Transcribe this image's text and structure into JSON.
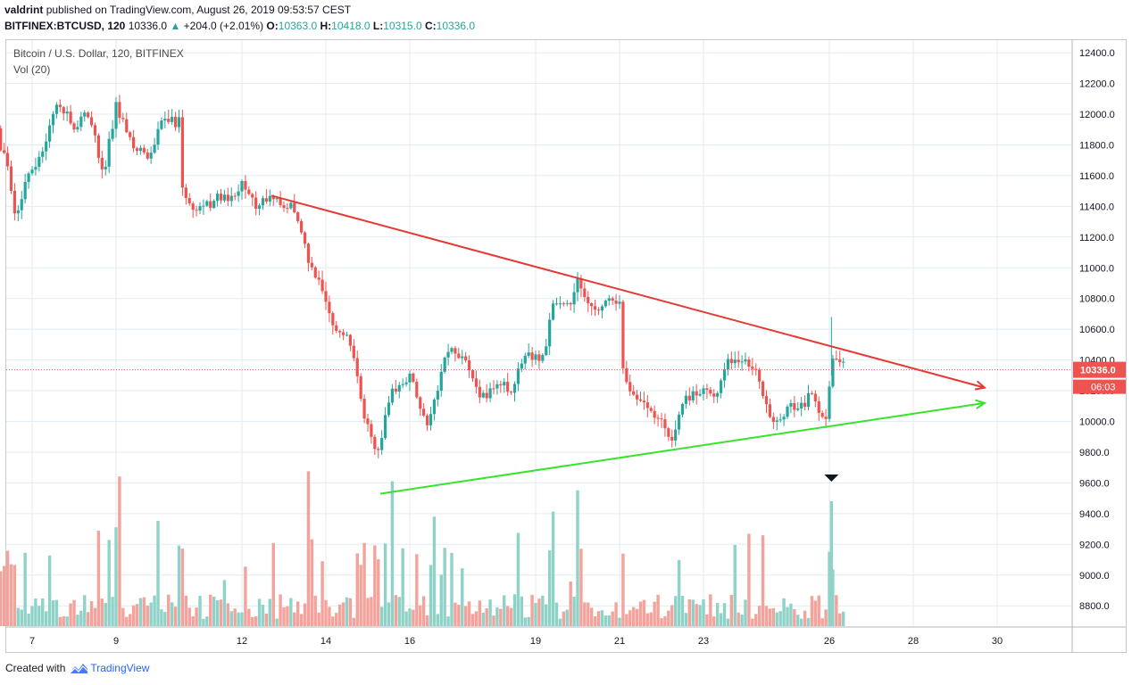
{
  "header": {
    "author": "valdrint",
    "published": "published on TradingView.com, August 26, 2019 09:53:57 CEST",
    "symbol": "BITFINEX:BTCUSD, 120",
    "last": "10336.0",
    "change": "+204.0 (+2.01%)",
    "open_label": "O:",
    "open": "10363.0",
    "high_label": "H:",
    "high": "10418.0",
    "low_label": "L:",
    "low": "10315.0",
    "close_label": "C:",
    "close": "10336.0"
  },
  "legend": {
    "title": "Bitcoin / U.S. Dollar, 120, BITFINEX",
    "volume": "Vol (20)"
  },
  "price_axis": {
    "ticks": [
      8800,
      9000,
      9200,
      9400,
      9600,
      9800,
      10000,
      10200,
      10400,
      10600,
      10800,
      11000,
      11200,
      11400,
      11600,
      11800,
      12000,
      12200,
      12400
    ],
    "current_price": "10336.0",
    "countdown": "06:03"
  },
  "time_axis": {
    "ticks": [
      "7",
      "9",
      "12",
      "14",
      "16",
      "19",
      "21",
      "23",
      "26",
      "28",
      "30"
    ]
  },
  "colors": {
    "up": "#26a69a",
    "down": "#ef5350",
    "up_volume": "#8fd2c8",
    "down_volume": "#f3a39b",
    "resistance": "#e53935",
    "support": "#39e32b"
  },
  "chart_data": {
    "type": "candlestick",
    "symbol": "BTCUSD",
    "interval": "120",
    "x_unit": "day of August 2019",
    "y_range": [
      8700,
      12500
    ],
    "anchors": [
      {
        "day": 6.0,
        "price": 12280
      },
      {
        "day": 6.2,
        "price": 11820
      },
      {
        "day": 6.4,
        "price": 11720
      },
      {
        "day": 6.6,
        "price": 11350
      },
      {
        "day": 6.9,
        "price": 11600
      },
      {
        "day": 7.3,
        "price": 11790
      },
      {
        "day": 7.6,
        "price": 12100
      },
      {
        "day": 8.0,
        "price": 11900
      },
      {
        "day": 8.3,
        "price": 12050
      },
      {
        "day": 8.7,
        "price": 11620
      },
      {
        "day": 9.0,
        "price": 12050
      },
      {
        "day": 9.4,
        "price": 11800
      },
      {
        "day": 9.8,
        "price": 11720
      },
      {
        "day": 10.1,
        "price": 11950
      },
      {
        "day": 10.5,
        "price": 11950
      },
      {
        "day": 10.6,
        "price": 11430
      },
      {
        "day": 11.0,
        "price": 11380
      },
      {
        "day": 11.4,
        "price": 11450
      },
      {
        "day": 11.8,
        "price": 11450
      },
      {
        "day": 12.0,
        "price": 11560
      },
      {
        "day": 12.3,
        "price": 11400
      },
      {
        "day": 12.8,
        "price": 11450
      },
      {
        "day": 13.3,
        "price": 11380
      },
      {
        "day": 13.6,
        "price": 11000
      },
      {
        "day": 13.9,
        "price": 10900
      },
      {
        "day": 14.1,
        "price": 10650
      },
      {
        "day": 14.6,
        "price": 10500
      },
      {
        "day": 14.9,
        "price": 10050
      },
      {
        "day": 15.2,
        "price": 9780
      },
      {
        "day": 15.6,
        "price": 10200
      },
      {
        "day": 16.0,
        "price": 10300
      },
      {
        "day": 16.4,
        "price": 9950
      },
      {
        "day": 16.9,
        "price": 10450
      },
      {
        "day": 17.3,
        "price": 10420
      },
      {
        "day": 17.7,
        "price": 10150
      },
      {
        "day": 18.1,
        "price": 10250
      },
      {
        "day": 18.4,
        "price": 10200
      },
      {
        "day": 18.8,
        "price": 10450
      },
      {
        "day": 19.2,
        "price": 10400
      },
      {
        "day": 19.4,
        "price": 10780
      },
      {
        "day": 19.8,
        "price": 10750
      },
      {
        "day": 20.0,
        "price": 10930
      },
      {
        "day": 20.4,
        "price": 10700
      },
      {
        "day": 20.8,
        "price": 10820
      },
      {
        "day": 21.0,
        "price": 10770
      },
      {
        "day": 21.1,
        "price": 10280
      },
      {
        "day": 21.5,
        "price": 10100
      },
      {
        "day": 21.9,
        "price": 10050
      },
      {
        "day": 22.2,
        "price": 9870
      },
      {
        "day": 22.6,
        "price": 10150
      },
      {
        "day": 23.0,
        "price": 10200
      },
      {
        "day": 23.3,
        "price": 10150
      },
      {
        "day": 23.6,
        "price": 10400
      },
      {
        "day": 24.1,
        "price": 10380
      },
      {
        "day": 24.3,
        "price": 10300
      },
      {
        "day": 24.6,
        "price": 10000
      },
      {
        "day": 25.0,
        "price": 10080
      },
      {
        "day": 25.4,
        "price": 10120
      },
      {
        "day": 25.6,
        "price": 10180
      },
      {
        "day": 25.9,
        "price": 10000
      },
      {
        "day": 26.1,
        "price": 10430
      },
      {
        "day": 26.4,
        "price": 10336
      }
    ],
    "last_price": 10336.0,
    "drawings": [
      {
        "name": "resistance-trendline",
        "points": [
          {
            "day": 12.7,
            "price": 11470
          },
          {
            "day": 29.7,
            "price": 10220
          }
        ]
      },
      {
        "name": "support-trendline",
        "points": [
          {
            "day": 15.3,
            "price": 9530
          },
          {
            "day": 29.7,
            "price": 10120
          }
        ]
      }
    ],
    "volume_spike_marker_day": 26.05
  },
  "footer": {
    "created": "Created with",
    "brand": "TradingView"
  }
}
